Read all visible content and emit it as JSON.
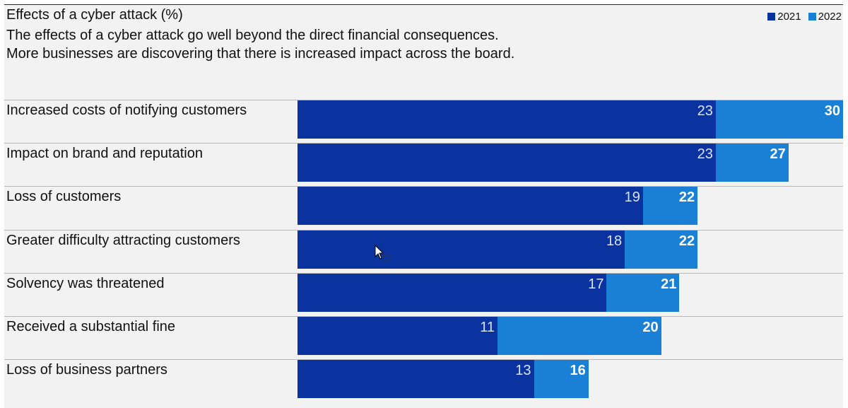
{
  "chart_data": {
    "type": "bar",
    "orientation": "horizontal",
    "title": "Effects of a cyber attack (%)",
    "subtitle": [
      "The effects of a cyber attack go well beyond the direct financial consequences.",
      "More businesses are discovering that there is increased impact across the board."
    ],
    "categories": [
      "Increased costs of notifying customers",
      "Impact on brand and reputation",
      "Loss of customers",
      "Greater difficulty attracting customers",
      "Solvency was threatened",
      "Received a substantial fine",
      "Loss of business partners"
    ],
    "series": [
      {
        "name": "2021",
        "values": [
          23,
          23,
          19,
          18,
          17,
          11,
          13
        ],
        "color": "#0a33a0"
      },
      {
        "name": "2022",
        "values": [
          30,
          27,
          22,
          22,
          21,
          20,
          16
        ],
        "color": "#1a80d6"
      }
    ],
    "xlim": [
      0,
      30
    ],
    "legend_position": "top-right",
    "grid": false
  }
}
